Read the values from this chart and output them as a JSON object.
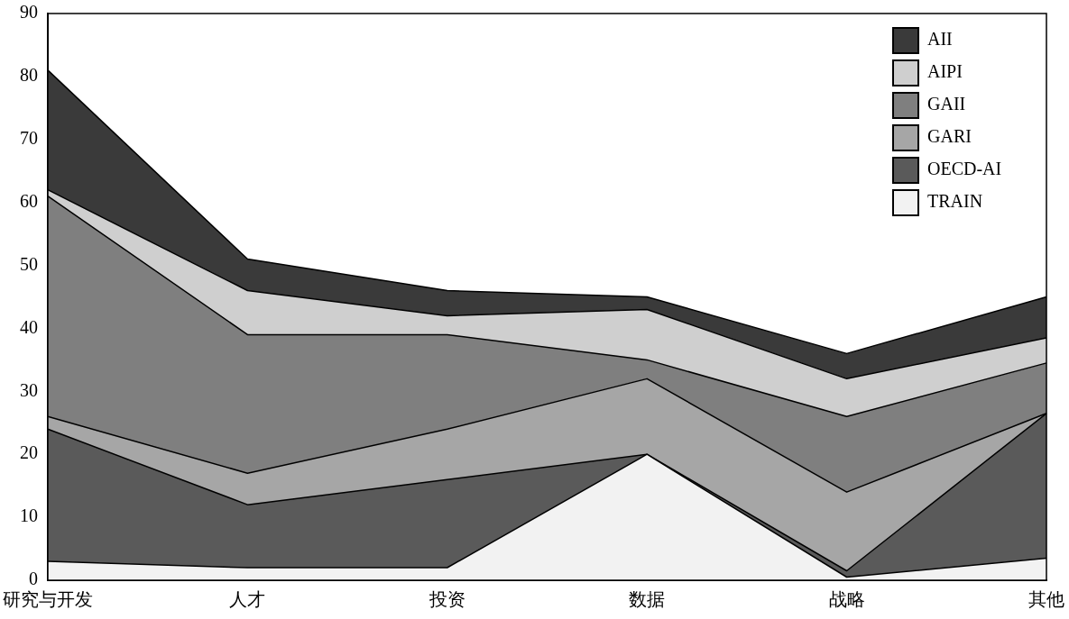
{
  "chart_data": {
    "type": "area",
    "stacked": true,
    "categories": [
      "研究与开发",
      "人才",
      "投资",
      "数据",
      "战略",
      "其他"
    ],
    "series": [
      {
        "name": "TRAIN",
        "color": "#f2f2f2",
        "values": [
          3,
          2,
          2,
          20,
          0.5,
          3.5
        ]
      },
      {
        "name": "OECD-AI",
        "color": "#5a5a5a",
        "values": [
          21,
          10,
          14,
          0,
          1,
          23
        ]
      },
      {
        "name": "GARI",
        "color": "#a6a6a6",
        "values": [
          2,
          5,
          8,
          12,
          12.5,
          0
        ]
      },
      {
        "name": "GAII",
        "color": "#7f7f7f",
        "values": [
          35,
          22,
          15,
          3,
          12,
          8
        ]
      },
      {
        "name": "AIPI",
        "color": "#cfcfcf",
        "values": [
          1,
          7,
          3,
          8,
          6,
          4
        ]
      },
      {
        "name": "AII",
        "color": "#3a3a3a",
        "values": [
          19,
          5,
          4,
          2,
          4,
          6.5
        ]
      }
    ],
    "ylim": [
      0,
      90
    ],
    "yticks": [
      0,
      10,
      20,
      30,
      40,
      50,
      60,
      70,
      80,
      90
    ],
    "grid": false,
    "legend": "top right"
  }
}
